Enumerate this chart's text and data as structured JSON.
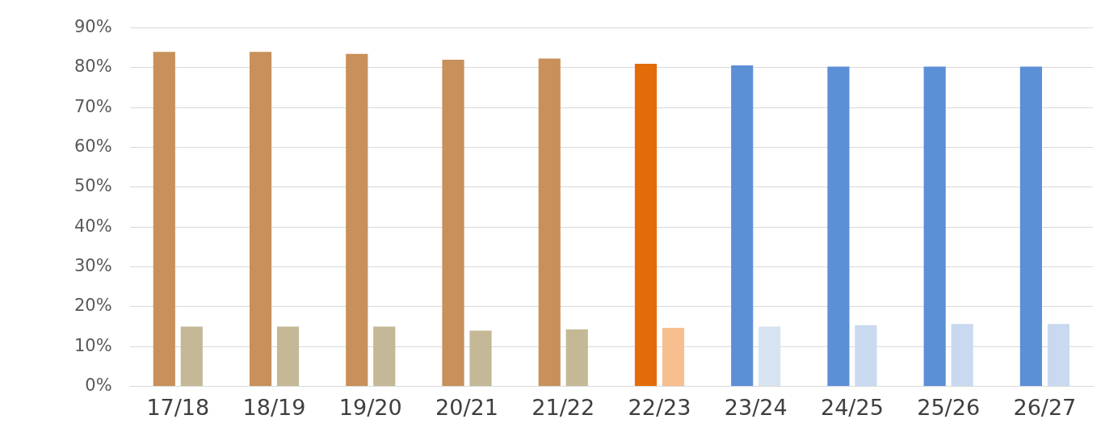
{
  "chart_data": {
    "type": "bar",
    "categories": [
      "17/18",
      "18/19",
      "19/20",
      "20/21",
      "21/22",
      "22/23",
      "23/24",
      "24/25",
      "25/26",
      "26/27"
    ],
    "series": [
      {
        "colors": [
          "#c8905a",
          "#c8905a",
          "#c8905a",
          "#c8905a",
          "#c8905a",
          "#e36c0a",
          "#5b8fd6",
          "#5b8fd6",
          "#5b8fd6",
          "#5b8fd6"
        ],
        "values": [
          84,
          84,
          83.5,
          82,
          82.3,
          81,
          80.6,
          80.3,
          80.3,
          80.3
        ]
      },
      {
        "colors": [
          "#c4b896",
          "#c4b896",
          "#c4b896",
          "#c4b896",
          "#c4b896",
          "#f7bf90",
          "#d8e3f2",
          "#c9d9ef",
          "#c9d9ef",
          "#c9d9ef"
        ],
        "values": [
          15,
          15,
          15,
          14,
          14.3,
          14.7,
          15,
          15.4,
          15.7,
          15.7
        ]
      }
    ],
    "ylim": [
      0,
      90
    ],
    "yticks": [
      {
        "value": 0,
        "label": "0%"
      },
      {
        "value": 10,
        "label": "10%"
      },
      {
        "value": 20,
        "label": "20%"
      },
      {
        "value": 30,
        "label": "30%"
      },
      {
        "value": 40,
        "label": "40%"
      },
      {
        "value": 50,
        "label": "50%"
      },
      {
        "value": 60,
        "label": "60%"
      },
      {
        "value": 70,
        "label": "70%"
      },
      {
        "value": 80,
        "label": "80%"
      },
      {
        "value": 90,
        "label": "90%"
      }
    ],
    "grid": "y",
    "legend": false
  }
}
